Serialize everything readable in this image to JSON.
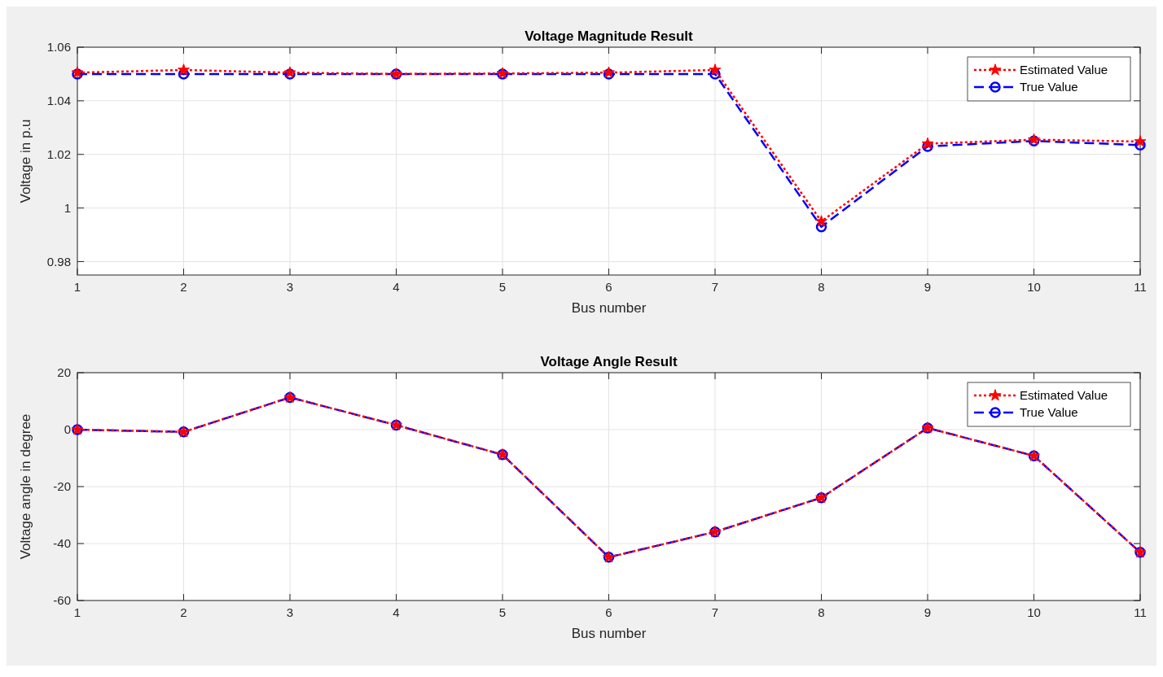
{
  "chart_data": [
    {
      "type": "line",
      "title": "Voltage Magnitude Result",
      "xlabel": "Bus number",
      "ylabel": "Voltage in p.u",
      "x": [
        1,
        2,
        3,
        4,
        5,
        6,
        7,
        8,
        9,
        10,
        11
      ],
      "series": [
        {
          "name": "Estimated Value",
          "color": "#ff0000",
          "marker": "star",
          "line_style": "dotted",
          "values": [
            1.0505,
            1.0515,
            1.0505,
            1.05,
            1.0502,
            1.0505,
            1.0515,
            0.995,
            1.024,
            1.0255,
            1.0248
          ]
        },
        {
          "name": "True Value",
          "color": "#0000ff",
          "marker": "circle",
          "line_style": "dashed",
          "values": [
            1.05,
            1.05,
            1.05,
            1.05,
            1.05,
            1.05,
            1.05,
            0.993,
            1.023,
            1.025,
            1.0235
          ]
        }
      ],
      "xlim": [
        1,
        11
      ],
      "xticks": [
        1,
        2,
        3,
        4,
        5,
        6,
        7,
        8,
        9,
        10,
        11
      ],
      "ylim": [
        0.975,
        1.06
      ],
      "yticks": [
        0.98,
        1,
        1.02,
        1.04,
        1.06
      ],
      "grid": true,
      "legend": "top right"
    },
    {
      "type": "line",
      "title": "Voltage Angle Result",
      "xlabel": "Bus number",
      "ylabel": "Voltage angle in degree",
      "x": [
        1,
        2,
        3,
        4,
        5,
        6,
        7,
        8,
        9,
        10,
        11
      ],
      "series": [
        {
          "name": "Estimated Value",
          "color": "#ff0000",
          "marker": "star",
          "line_style": "dotted",
          "values": [
            0,
            -0.8,
            11.3,
            1.6,
            -8.8,
            -44.8,
            -35.9,
            -23.9,
            0.6,
            -9.2,
            -43.1
          ]
        },
        {
          "name": "True Value",
          "color": "#0000ff",
          "marker": "circle",
          "line_style": "dashed",
          "values": [
            0,
            -0.8,
            11.3,
            1.6,
            -8.8,
            -44.8,
            -35.9,
            -23.9,
            0.6,
            -9.2,
            -43.1
          ]
        }
      ],
      "xlim": [
        1,
        11
      ],
      "xticks": [
        1,
        2,
        3,
        4,
        5,
        6,
        7,
        8,
        9,
        10,
        11
      ],
      "ylim": [
        -60,
        20
      ],
      "yticks": [
        -60,
        -40,
        -20,
        0,
        20
      ],
      "grid": true,
      "legend": "top right"
    }
  ]
}
